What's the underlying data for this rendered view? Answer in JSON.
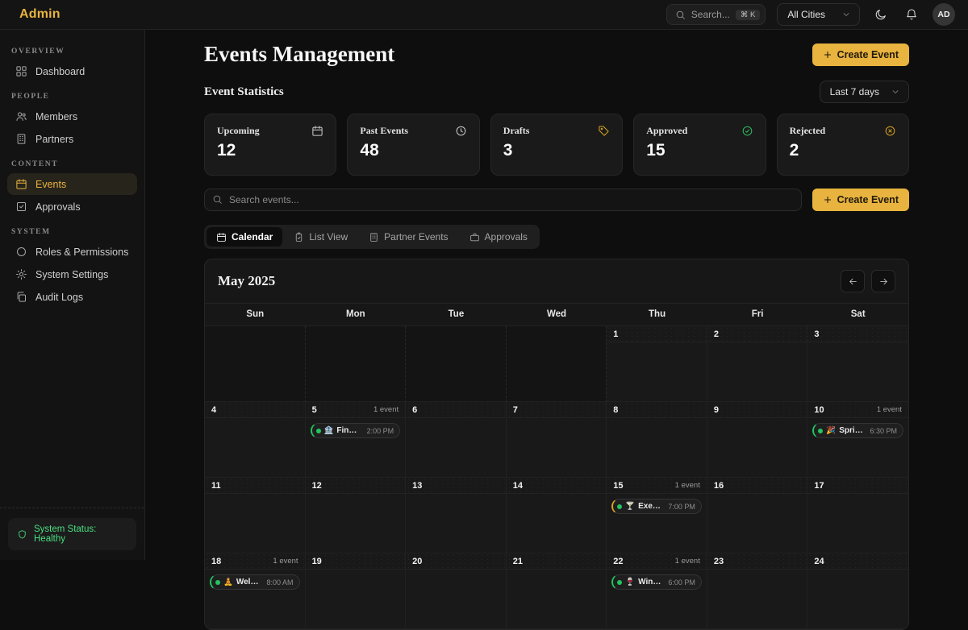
{
  "topbar": {
    "brand": "Admin",
    "search": {
      "placeholder": "Search...",
      "shortcut": "⌘ K"
    },
    "city_filter": "All Cities",
    "avatar": "AD"
  },
  "sidebar": {
    "sections": [
      {
        "label": "OVERVIEW",
        "items": [
          {
            "label": "Dashboard"
          }
        ]
      },
      {
        "label": "PEOPLE",
        "items": [
          {
            "label": "Members"
          },
          {
            "label": "Partners"
          }
        ]
      },
      {
        "label": "CONTENT",
        "items": [
          {
            "label": "Events",
            "active": true
          },
          {
            "label": "Approvals"
          }
        ]
      },
      {
        "label": "SYSTEM",
        "items": [
          {
            "label": "Roles & Permissions"
          },
          {
            "label": "System Settings"
          },
          {
            "label": "Audit Logs"
          }
        ]
      }
    ],
    "status": "System Status: Healthy"
  },
  "header": {
    "title": "Events Management",
    "create_label": "Create Event"
  },
  "stats": {
    "title": "Event Statistics",
    "range_filter": "Last 7 days",
    "cards": [
      {
        "label": "Upcoming",
        "value": "12",
        "icon": "calendar-icon",
        "color": "#cfcfcf"
      },
      {
        "label": "Past Events",
        "value": "48",
        "icon": "clock-icon",
        "color": "#cfcfcf"
      },
      {
        "label": "Drafts",
        "value": "3",
        "icon": "tag-icon",
        "color": "#d9a521"
      },
      {
        "label": "Approved",
        "value": "15",
        "icon": "check-circle-icon",
        "color": "#2ebd63"
      },
      {
        "label": "Rejected",
        "value": "2",
        "icon": "x-circle-icon",
        "color": "#d9a521"
      }
    ]
  },
  "toolbar": {
    "search_placeholder": "Search events...",
    "create_label": "Create Event"
  },
  "tabs": [
    {
      "label": "Calendar",
      "active": true
    },
    {
      "label": "List View"
    },
    {
      "label": "Partner Events"
    },
    {
      "label": "Approvals"
    }
  ],
  "calendar": {
    "month": "May 2025",
    "weekdays": [
      "Sun",
      "Mon",
      "Tue",
      "Wed",
      "Thu",
      "Fri",
      "Sat"
    ],
    "leading_blanks": 4,
    "days": [
      1,
      2,
      3,
      4,
      5,
      6,
      7,
      8,
      9,
      10,
      11,
      12,
      13,
      14,
      15,
      16,
      17,
      18,
      19,
      20,
      21,
      22,
      23,
      24
    ],
    "events": [
      {
        "day": 5,
        "count_label": "1 event",
        "emoji": "🏦",
        "title": "Financial W...",
        "time": "2:00 PM",
        "accent": "#22c55e"
      },
      {
        "day": 10,
        "count_label": "1 event",
        "emoji": "🎉",
        "title": "Spring Fas...",
        "time": "6:30 PM",
        "accent": "#22c55e"
      },
      {
        "day": 15,
        "count_label": "1 event",
        "emoji": "🍸",
        "title": "Executive ...",
        "time": "7:00 PM",
        "accent": "#d9a521"
      },
      {
        "day": 18,
        "count_label": "1 event",
        "emoji": "🧘",
        "title": "Wellness Re...",
        "time": "8:00 AM",
        "accent": "#22c55e"
      },
      {
        "day": 22,
        "count_label": "1 event",
        "emoji": "🍷",
        "title": "Wine Tastin...",
        "time": "6:00 PM",
        "accent": "#22c55e"
      }
    ],
    "colors": {
      "green": "#22c55e",
      "amber": "#d9a521",
      "gold_accent": "#e8b33e"
    }
  }
}
